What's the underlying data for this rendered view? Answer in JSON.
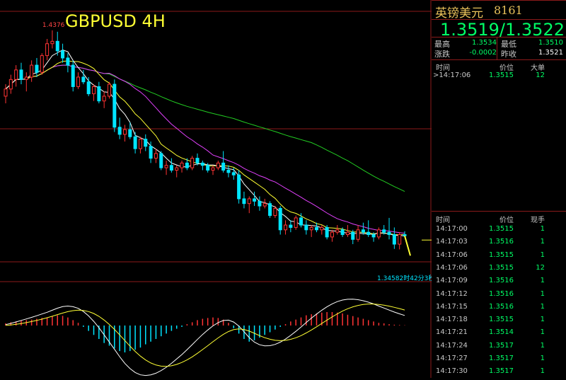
{
  "chart_data": {
    "type": "candlestick",
    "title": "GBPUSD 4H",
    "high_label": "1.4376",
    "low_label": "1.3458",
    "countdown_label": "1.34582时42分3秒",
    "price_range": [
      1.34,
      1.442
    ],
    "bars": [
      [
        1.41,
        1.415,
        1.407,
        1.413
      ],
      [
        1.413,
        1.419,
        1.411,
        1.417
      ],
      [
        1.417,
        1.423,
        1.414,
        1.421
      ],
      [
        1.421,
        1.424,
        1.415,
        1.417
      ],
      [
        1.417,
        1.42,
        1.412,
        1.418
      ],
      [
        1.418,
        1.425,
        1.416,
        1.423
      ],
      [
        1.423,
        1.426,
        1.418,
        1.42
      ],
      [
        1.42,
        1.428,
        1.419,
        1.427
      ],
      [
        1.427,
        1.434,
        1.425,
        1.432
      ],
      [
        1.432,
        1.4376,
        1.43,
        1.433
      ],
      [
        1.433,
        1.437,
        1.427,
        1.429
      ],
      [
        1.429,
        1.432,
        1.424,
        1.426
      ],
      [
        1.426,
        1.428,
        1.42,
        1.423
      ],
      [
        1.423,
        1.425,
        1.412,
        1.414
      ],
      [
        1.414,
        1.42,
        1.413,
        1.418
      ],
      [
        1.418,
        1.421,
        1.415,
        1.416
      ],
      [
        1.416,
        1.418,
        1.41,
        1.411
      ],
      [
        1.411,
        1.415,
        1.408,
        1.414
      ],
      [
        1.414,
        1.416,
        1.407,
        1.408
      ],
      [
        1.408,
        1.412,
        1.405,
        1.41
      ],
      [
        1.41,
        1.416,
        1.409,
        1.415
      ],
      [
        1.415,
        1.417,
        1.395,
        1.397
      ],
      [
        1.397,
        1.401,
        1.392,
        1.394
      ],
      [
        1.394,
        1.398,
        1.391,
        1.396
      ],
      [
        1.396,
        1.399,
        1.392,
        1.393
      ],
      [
        1.393,
        1.395,
        1.386,
        1.388
      ],
      [
        1.388,
        1.393,
        1.386,
        1.392
      ],
      [
        1.392,
        1.394,
        1.387,
        1.389
      ],
      [
        1.389,
        1.391,
        1.382,
        1.384
      ],
      [
        1.384,
        1.388,
        1.382,
        1.386
      ],
      [
        1.386,
        1.387,
        1.379,
        1.38
      ],
      [
        1.38,
        1.383,
        1.377,
        1.381
      ],
      [
        1.381,
        1.384,
        1.378,
        1.379
      ],
      [
        1.379,
        1.381,
        1.376,
        1.38
      ],
      [
        1.38,
        1.383,
        1.378,
        1.382
      ],
      [
        1.382,
        1.384,
        1.379,
        1.38
      ],
      [
        1.38,
        1.385,
        1.379,
        1.384
      ],
      [
        1.384,
        1.386,
        1.381,
        1.382
      ],
      [
        1.382,
        1.383,
        1.379,
        1.381
      ],
      [
        1.381,
        1.382,
        1.378,
        1.379
      ],
      [
        1.379,
        1.381,
        1.377,
        1.38
      ],
      [
        1.38,
        1.383,
        1.379,
        1.382
      ],
      [
        1.382,
        1.387,
        1.378,
        1.379
      ],
      [
        1.379,
        1.381,
        1.376,
        1.378
      ],
      [
        1.378,
        1.38,
        1.375,
        1.377
      ],
      [
        1.377,
        1.379,
        1.365,
        1.367
      ],
      [
        1.367,
        1.37,
        1.363,
        1.365
      ],
      [
        1.365,
        1.368,
        1.361,
        1.367
      ],
      [
        1.367,
        1.37,
        1.364,
        1.366
      ],
      [
        1.366,
        1.368,
        1.362,
        1.364
      ],
      [
        1.364,
        1.367,
        1.363,
        1.365
      ],
      [
        1.365,
        1.366,
        1.359,
        1.36
      ],
      [
        1.36,
        1.364,
        1.359,
        1.363
      ],
      [
        1.363,
        1.364,
        1.352,
        1.354
      ],
      [
        1.354,
        1.358,
        1.352,
        1.356
      ],
      [
        1.356,
        1.358,
        1.353,
        1.355
      ],
      [
        1.355,
        1.36,
        1.354,
        1.359
      ],
      [
        1.359,
        1.361,
        1.355,
        1.356
      ],
      [
        1.356,
        1.358,
        1.352,
        1.354
      ],
      [
        1.354,
        1.356,
        1.351,
        1.355
      ],
      [
        1.355,
        1.357,
        1.353,
        1.354
      ],
      [
        1.354,
        1.356,
        1.352,
        1.355
      ],
      [
        1.355,
        1.356,
        1.35,
        1.351
      ],
      [
        1.351,
        1.354,
        1.349,
        1.353
      ],
      [
        1.353,
        1.356,
        1.352,
        1.354
      ],
      [
        1.354,
        1.355,
        1.351,
        1.352
      ],
      [
        1.352,
        1.356,
        1.351,
        1.353
      ],
      [
        1.353,
        1.354,
        1.348,
        1.35
      ],
      [
        1.35,
        1.356,
        1.349,
        1.354
      ],
      [
        1.354,
        1.357,
        1.352,
        1.353
      ],
      [
        1.353,
        1.358,
        1.351,
        1.352
      ],
      [
        1.352,
        1.353,
        1.349,
        1.351
      ],
      [
        1.351,
        1.355,
        1.35,
        1.354
      ],
      [
        1.354,
        1.356,
        1.352,
        1.353
      ],
      [
        1.353,
        1.359,
        1.35,
        1.352
      ],
      [
        1.352,
        1.355,
        1.346,
        1.348
      ],
      [
        1.348,
        1.353,
        1.3458,
        1.352
      ],
      [
        1.352,
        1.3534,
        1.351,
        1.3515
      ]
    ],
    "macd_hist": [
      0.08,
      0.12,
      0.15,
      0.18,
      0.2,
      0.22,
      0.25,
      0.28,
      0.3,
      0.35,
      0.38,
      0.36,
      0.3,
      0.2,
      0.1,
      -0.05,
      -0.2,
      -0.35,
      -0.5,
      -0.65,
      -0.75,
      -0.85,
      -0.95,
      -1.0,
      -0.95,
      -0.9,
      -0.82,
      -0.7,
      -0.6,
      -0.5,
      -0.4,
      -0.3,
      -0.2,
      -0.12,
      -0.05,
      0.05,
      0.12,
      0.2,
      0.25,
      0.28,
      0.3,
      0.28,
      0.22,
      0.1,
      -0.1,
      -0.3,
      -0.5,
      -0.6,
      -0.55,
      -0.45,
      -0.35,
      -0.25,
      -0.15,
      -0.05,
      0.05,
      0.15,
      0.22,
      0.3,
      0.38,
      0.42,
      0.45,
      0.48,
      0.5,
      0.5,
      0.48,
      0.45,
      0.4,
      0.35,
      0.3,
      0.25,
      0.2,
      0.15,
      0.1,
      0.08,
      0.05,
      0.03,
      0.02,
      0.01
    ]
  },
  "quote": {
    "name": "英镑美元",
    "code": "8161",
    "bid_ask": "1.3519/1.3522",
    "high_label": "最高",
    "high_value": "1.3534",
    "low_label": "最低",
    "low_value": "1.3510",
    "change_label": "涨跌",
    "change_value": "-0.0002",
    "prev_label": "昨收",
    "prev_value": "1.3521"
  },
  "big_trades": {
    "headers": [
      "时间",
      "价位",
      "大单"
    ],
    "rows": [
      {
        "time": ">14:17:06",
        "price": "1.3515",
        "volume": "12"
      }
    ]
  },
  "ticks": {
    "headers": [
      "时间",
      "价位",
      "现手"
    ],
    "rows": [
      {
        "time": "14:17:00",
        "price": "1.3515",
        "volume": "1"
      },
      {
        "time": "14:17:03",
        "price": "1.3516",
        "volume": "1"
      },
      {
        "time": "14:17:06",
        "price": "1.3515",
        "volume": "1"
      },
      {
        "time": "14:17:06",
        "price": "1.3515",
        "volume": "12"
      },
      {
        "time": "14:17:09",
        "price": "1.3516",
        "volume": "1"
      },
      {
        "time": "14:17:12",
        "price": "1.3516",
        "volume": "1"
      },
      {
        "time": "14:17:15",
        "price": "1.3516",
        "volume": "1"
      },
      {
        "time": "14:17:18",
        "price": "1.3515",
        "volume": "1"
      },
      {
        "time": "14:17:21",
        "price": "1.3514",
        "volume": "1"
      },
      {
        "time": "14:17:24",
        "price": "1.3517",
        "volume": "1"
      },
      {
        "time": "14:17:27",
        "price": "1.3517",
        "volume": "1"
      },
      {
        "time": "14:17:30",
        "price": "1.3517",
        "volume": "1"
      }
    ]
  },
  "colors": {
    "up": "#ff3333",
    "down": "#00e5ff",
    "ma_fast": "#ffffff",
    "ma_mid": "#ffff33",
    "ma_slow": "#e040fb",
    "ma_long": "#22cc22",
    "grid": "#8b1a1a",
    "text": "#c0c0c0",
    "quote": "#00ff66"
  }
}
